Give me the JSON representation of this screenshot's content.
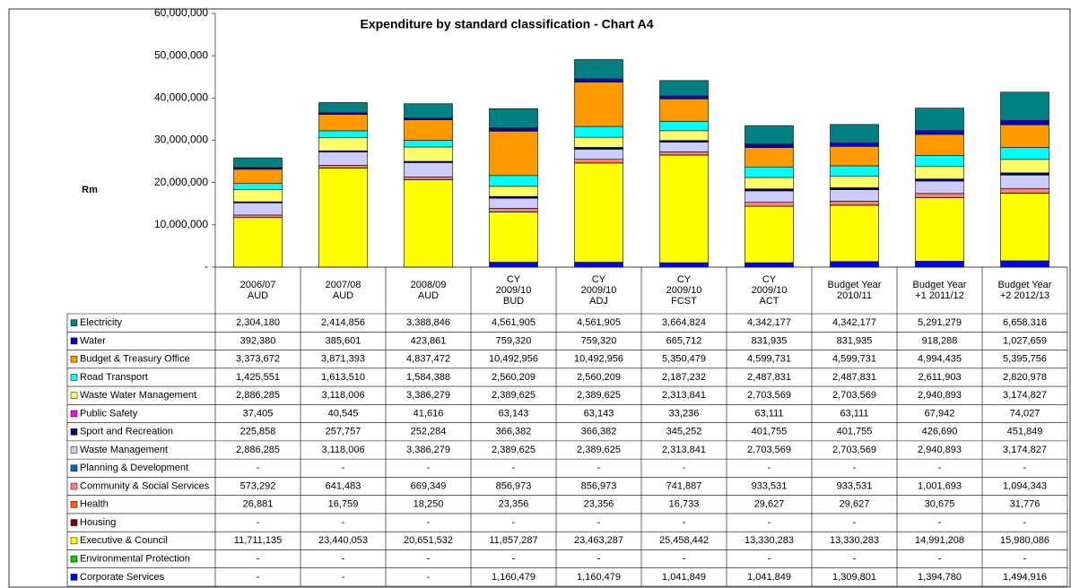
{
  "chart_data": {
    "type": "stacked-bar",
    "title": "Expenditure by standard classification - Chart A4",
    "y_label": "Rm",
    "categories": [
      [
        "2006/07",
        "AUD"
      ],
      [
        "2007/08",
        "AUD"
      ],
      [
        "2008/09",
        "AUD"
      ],
      [
        "CY",
        "2009/10",
        "BUD"
      ],
      [
        "CY",
        "2009/10",
        "ADJ"
      ],
      [
        "CY",
        "2009/10",
        "FCST"
      ],
      [
        "CY",
        "2009/10",
        "ACT"
      ],
      [
        "Budget Year",
        "2010/11"
      ],
      [
        "Budget Year",
        "+1  2011/12"
      ],
      [
        "Budget Year",
        "+2  2012/13"
      ]
    ],
    "ylim": [
      0,
      60000000
    ],
    "yticks": [
      {
        "value": 0,
        "label": "-"
      },
      {
        "value": 10000000,
        "label": "10,000,000"
      },
      {
        "value": 20000000,
        "label": "20,000,000"
      },
      {
        "value": 30000000,
        "label": "30,000,000"
      },
      {
        "value": 40000000,
        "label": "40,000,000"
      },
      {
        "value": 50000000,
        "label": "50,000,000"
      },
      {
        "value": 60000000,
        "label": "60,000,000"
      }
    ],
    "series": [
      {
        "name": "Electricity",
        "color": "#008080",
        "values": [
          2304180,
          2414856,
          3388846,
          4561905,
          4561905,
          3664824,
          4342177,
          4342177,
          5291279,
          6658316
        ],
        "value_labels": [
          "2,304,180",
          "2,414,856",
          "3,388,846",
          "4,561,905",
          "4,561,905",
          "3,664,824",
          "4,342,177",
          "4,342,177",
          "5,291,279",
          "6,658,316"
        ]
      },
      {
        "name": "Water",
        "color": "#0000cc",
        "values": [
          392380,
          385601,
          423861,
          759320,
          759320,
          665712,
          831935,
          831935,
          918288,
          1027659
        ],
        "value_labels": [
          "392,380",
          "385,601",
          "423,861",
          "759,320",
          "759,320",
          "665,712",
          "831,935",
          "831,935",
          "918,288",
          "1,027,659"
        ]
      },
      {
        "name": "Budget & Treasury Office",
        "color": "#ff9900",
        "values": [
          3373672,
          3871393,
          4837472,
          10492956,
          10492956,
          5350479,
          4599731,
          4599731,
          4994435,
          5395756
        ],
        "value_labels": [
          "3,373,672",
          "3,871,393",
          "4,837,472",
          "10,492,956",
          "10,492,956",
          "5,350,479",
          "4,599,731",
          "4,599,731",
          "4,994,435",
          "5,395,756"
        ]
      },
      {
        "name": "Road Transport",
        "color": "#00ffff",
        "values": [
          1425551,
          1613510,
          1584388,
          2560209,
          2560209,
          2187232,
          2487831,
          2487831,
          2611903,
          2820978
        ],
        "value_labels": [
          "1,425,551",
          "1,613,510",
          "1,584,388",
          "2,560,209",
          "2,560,209",
          "2,187,232",
          "2,487,831",
          "2,487,831",
          "2,611,903",
          "2,820,978"
        ]
      },
      {
        "name": "Waste Water Management",
        "color": "#ffff66",
        "values": [
          2886285,
          3118006,
          3386279,
          2389625,
          2389625,
          2313841,
          2703569,
          2703569,
          2940893,
          3174827
        ],
        "value_labels": [
          "2,886,285",
          "3,118,006",
          "3,386,279",
          "2,389,625",
          "2,389,625",
          "2,313,841",
          "2,703,569",
          "2,703,569",
          "2,940,893",
          "3,174,827"
        ]
      },
      {
        "name": "Public Safety",
        "color": "#ff00ff",
        "values": [
          37405,
          40545,
          41616,
          63143,
          63143,
          33236,
          63111,
          63111,
          67942,
          74027
        ],
        "value_labels": [
          "37,405",
          "40,545",
          "41,616",
          "63,143",
          "63,143",
          "33,236",
          "63,111",
          "63,111",
          "67,942",
          "74,027"
        ]
      },
      {
        "name": "Sport and Recreation",
        "color": "#000080",
        "values": [
          225858,
          257757,
          252284,
          366382,
          366382,
          345252,
          401755,
          401755,
          426690,
          451849
        ],
        "value_labels": [
          "225,858",
          "257,757",
          "252,284",
          "366,382",
          "366,382",
          "345,252",
          "401,755",
          "401,755",
          "426,690",
          "451,849"
        ]
      },
      {
        "name": "Waste Management",
        "color": "#ccccff",
        "values": [
          2886285,
          3118006,
          3386279,
          2389625,
          2389625,
          2313841,
          2703569,
          2703569,
          2940893,
          3174827
        ],
        "value_labels": [
          "2,886,285",
          "3,118,006",
          "3,386,279",
          "2,389,625",
          "2,389,625",
          "2,313,841",
          "2,703,569",
          "2,703,569",
          "2,940,893",
          "3,174,827"
        ]
      },
      {
        "name": "Planning & Development",
        "color": "#0066cc",
        "values": [
          0,
          0,
          0,
          0,
          0,
          0,
          0,
          0,
          0,
          0
        ],
        "value_labels": [
          "-",
          "-",
          "-",
          "-",
          "-",
          "-",
          "-",
          "-",
          "-",
          "-"
        ]
      },
      {
        "name": "Community & Social Services",
        "color": "#ff8080",
        "values": [
          573292,
          641483,
          669349,
          856973,
          856973,
          741887,
          933531,
          933531,
          1001693,
          1094343
        ],
        "value_labels": [
          "573,292",
          "641,483",
          "669,349",
          "856,973",
          "856,973",
          "741,887",
          "933,531",
          "933,531",
          "1,001,693",
          "1,094,343"
        ]
      },
      {
        "name": "Health",
        "color": "#ff6600",
        "values": [
          26881,
          16759,
          18250,
          23356,
          23356,
          16733,
          29627,
          29627,
          30675,
          31776
        ],
        "value_labels": [
          "26,881",
          "16,759",
          "18,250",
          "23,356",
          "23,356",
          "16,733",
          "29,627",
          "29,627",
          "30,675",
          "31,776"
        ]
      },
      {
        "name": "Housing",
        "color": "#800000",
        "values": [
          0,
          0,
          0,
          0,
          0,
          0,
          0,
          0,
          0,
          0
        ],
        "value_labels": [
          "-",
          "-",
          "-",
          "-",
          "-",
          "-",
          "-",
          "-",
          "-",
          "-"
        ]
      },
      {
        "name": "Executive & Council",
        "color": "#ffff00",
        "values": [
          11711135,
          23440053,
          20651532,
          11857287,
          23463287,
          25458442,
          13330283,
          13330283,
          14991208,
          15980086
        ],
        "value_labels": [
          "11,711,135",
          "23,440,053",
          "20,651,532",
          "11,857,287",
          "23,463,287",
          "25,458,442",
          "13,330,283",
          "13,330,283",
          "14,991,208",
          "15,980,086"
        ]
      },
      {
        "name": "Environmental Protection",
        "color": "#00cc00",
        "values": [
          0,
          0,
          0,
          0,
          0,
          0,
          0,
          0,
          0,
          0
        ],
        "value_labels": [
          "-",
          "-",
          "-",
          "-",
          "-",
          "-",
          "-",
          "-",
          "-",
          "-"
        ]
      },
      {
        "name": "Corporate Services",
        "color": "#0000ff",
        "values": [
          0,
          0,
          0,
          1160479,
          1160479,
          1041849,
          1041849,
          1309801,
          1394780,
          1494916
        ],
        "value_labels": [
          "-",
          "-",
          "-",
          "1,160,479",
          "1,160,479",
          "1,041,849",
          "1,041,849",
          "1,309,801",
          "1,394,780",
          "1,494,916"
        ]
      }
    ]
  }
}
